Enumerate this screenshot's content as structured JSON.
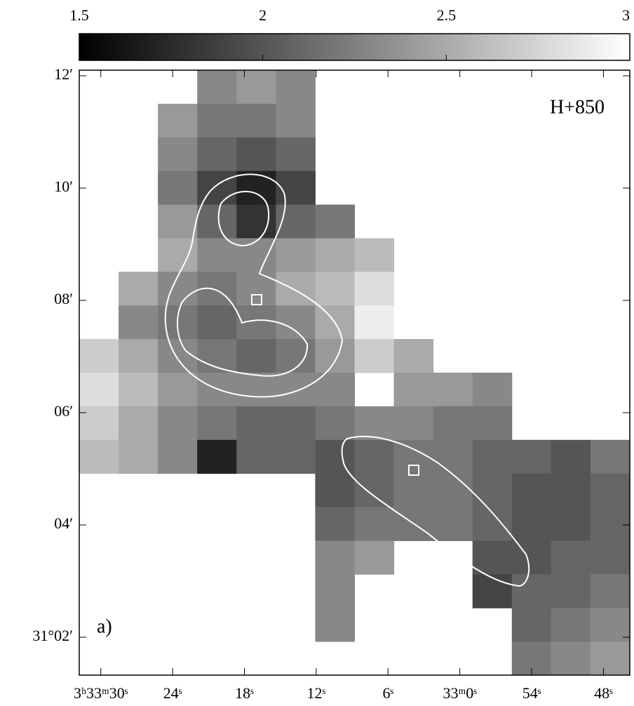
{
  "chart_data": {
    "type": "heatmap",
    "annotations": [
      "H+850",
      "a)"
    ],
    "xlim": [
      31.8,
      -14.2
    ],
    "xticks": [
      {
        "value": 30,
        "label": "3ʰ33ᵐ30ˢ"
      },
      {
        "value": 24,
        "label": "24ˢ"
      },
      {
        "value": 18,
        "label": "18ˢ"
      },
      {
        "value": 12,
        "label": "12ˢ"
      },
      {
        "value": 6,
        "label": "6ˢ"
      },
      {
        "value": 0,
        "label": "33ᵐ0ˢ"
      },
      {
        "value": -6,
        "label": "54ˢ"
      },
      {
        "value": -12,
        "label": "48ˢ"
      }
    ],
    "ylim": [
      1.325,
      12.1
    ],
    "yticks": [
      {
        "value": 12,
        "label": "12′"
      },
      {
        "value": 10,
        "label": "10′"
      },
      {
        "value": 8,
        "label": "08′"
      },
      {
        "value": 6,
        "label": "06′"
      },
      {
        "value": 4,
        "label": "04′"
      },
      {
        "value": 2,
        "label": "31°02′"
      }
    ],
    "clim": [
      1.5,
      3
    ],
    "cticks": [
      1.5,
      2,
      2.5,
      3
    ],
    "values": [
      [
        null,
        null,
        null,
        2.3,
        2.4,
        2.3,
        null,
        null,
        null,
        null,
        null,
        null,
        null,
        null
      ],
      [
        null,
        null,
        2.4,
        2.2,
        2.2,
        2.3,
        null,
        null,
        null,
        null,
        null,
        null,
        null,
        null
      ],
      [
        null,
        null,
        2.3,
        2.1,
        2.0,
        2.1,
        null,
        null,
        null,
        null,
        null,
        null,
        null,
        null
      ],
      [
        null,
        null,
        2.2,
        1.9,
        1.7,
        1.9,
        null,
        null,
        null,
        null,
        null,
        null,
        null,
        null
      ],
      [
        null,
        null,
        2.4,
        2.1,
        1.8,
        2.1,
        2.2,
        null,
        null,
        null,
        null,
        null,
        null,
        null
      ],
      [
        null,
        null,
        2.5,
        2.3,
        2.3,
        2.4,
        2.5,
        2.6,
        null,
        null,
        null,
        null,
        null,
        null
      ],
      [
        null,
        2.5,
        2.3,
        2.2,
        2.3,
        2.5,
        2.6,
        2.8,
        null,
        null,
        null,
        null,
        null,
        null
      ],
      [
        null,
        2.3,
        2.2,
        2.1,
        2.2,
        2.3,
        2.5,
        2.9,
        null,
        null,
        null,
        null,
        null,
        null
      ],
      [
        2.7,
        2.5,
        2.3,
        2.2,
        2.1,
        2.2,
        2.4,
        2.7,
        2.5,
        null,
        null,
        null,
        null,
        null
      ],
      [
        2.8,
        2.6,
        2.4,
        2.3,
        2.3,
        2.3,
        2.3,
        null,
        2.4,
        2.4,
        2.3,
        null,
        null,
        null
      ],
      [
        2.7,
        2.5,
        2.3,
        2.2,
        2.1,
        2.1,
        2.2,
        2.3,
        2.3,
        2.2,
        2.2,
        null,
        null,
        null
      ],
      [
        2.6,
        2.5,
        2.3,
        1.7,
        2.1,
        2.1,
        2.0,
        2.1,
        2.2,
        2.2,
        2.1,
        2.1,
        2.0,
        2.2
      ],
      [
        null,
        null,
        null,
        null,
        null,
        null,
        2.0,
        2.1,
        2.2,
        2.2,
        2.1,
        2.0,
        2.0,
        2.1
      ],
      [
        null,
        null,
        null,
        null,
        null,
        null,
        2.1,
        2.2,
        2.2,
        2.2,
        2.1,
        2.0,
        2.0,
        2.1
      ],
      [
        null,
        null,
        null,
        null,
        null,
        null,
        2.3,
        2.4,
        null,
        null,
        2.0,
        2.0,
        2.1,
        2.1
      ],
      [
        null,
        null,
        null,
        null,
        null,
        null,
        2.3,
        null,
        null,
        null,
        1.9,
        2.1,
        2.1,
        2.2
      ],
      [
        null,
        null,
        null,
        null,
        null,
        null,
        2.3,
        null,
        null,
        null,
        null,
        2.1,
        2.2,
        2.3
      ],
      [
        null,
        null,
        null,
        null,
        null,
        null,
        null,
        null,
        null,
        null,
        null,
        2.2,
        2.3,
        2.4
      ]
    ]
  }
}
